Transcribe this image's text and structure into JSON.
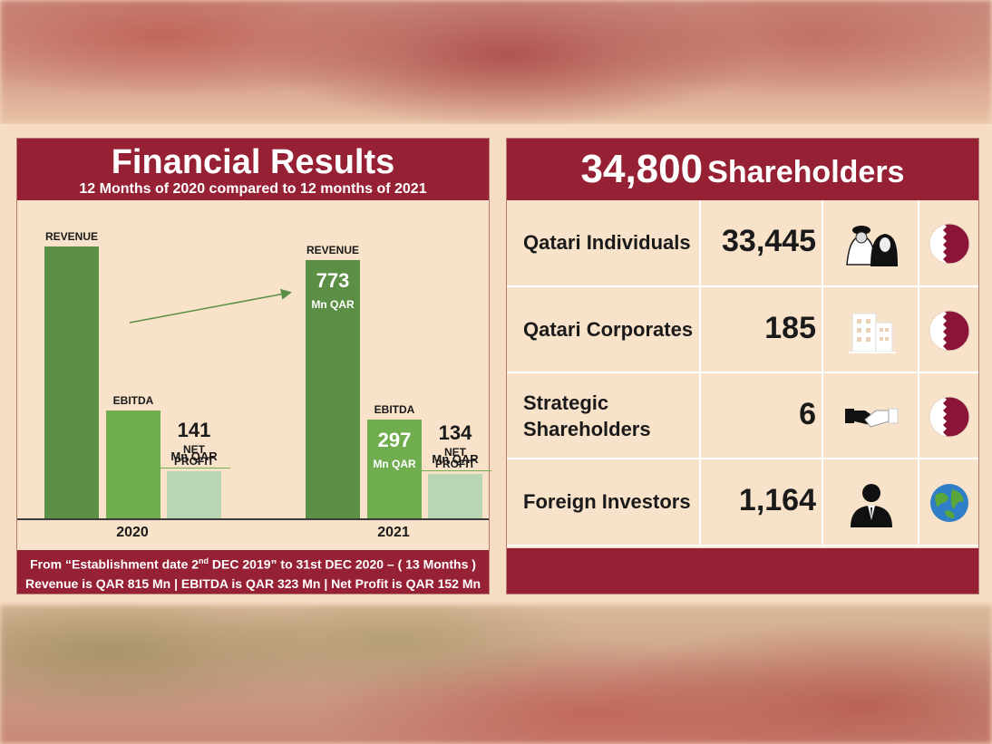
{
  "financial": {
    "title": "Financial Results",
    "subtitle": "12 Months of 2020 compared to 12 months of 2021",
    "footer_line1_pre": "From “Establishment date 2",
    "footer_line1_sup": "nd",
    "footer_line1_post": " DEC 2019” to 31st DEC 2020 – ( 13 Months )",
    "footer_line2": "Revenue is QAR 815 Mn | EBITDA is QAR 323 Mn | Net Profit is QAR 152 Mn"
  },
  "chart_data": {
    "type": "bar",
    "title": "Financial Results",
    "subtitle": "12 Months of 2020 compared to 12 months of 2021",
    "categories": [
      "2020",
      "2021"
    ],
    "unit": "Mn QAR",
    "series": [
      {
        "name": "REVENUE",
        "values": [
          815,
          773
        ],
        "color": "#5a8f45",
        "value_labels": [
          "",
          "773"
        ]
      },
      {
        "name": "EBITDA",
        "values": [
          323,
          297
        ],
        "color": "#6fad4f",
        "value_labels": [
          "",
          "297"
        ]
      },
      {
        "name": "NET PROFIT",
        "values": [
          141,
          134
        ],
        "color": "#b9d5b2",
        "value_labels": [
          "141",
          "134"
        ]
      }
    ],
    "ylim": [
      0,
      815
    ],
    "series_labels": {
      "revenue": "REVENUE",
      "ebitda": "EBITDA",
      "np_line1": "NET",
      "np_line2": "PROFIT"
    },
    "unit_label": "Mn QAR",
    "grid": false
  },
  "shareholders": {
    "total_number": "34,800",
    "total_word": "Shareholders",
    "rows": [
      {
        "label_line1": "Qatari Individuals",
        "label_line2": "",
        "value": "33,445",
        "icon": "people-icon",
        "flag": "qatar-flag-icon"
      },
      {
        "label_line1": "Qatari Corporates",
        "label_line2": "",
        "value": "185",
        "icon": "building-icon",
        "flag": "qatar-flag-icon"
      },
      {
        "label_line1": "Strategic",
        "label_line2": "Shareholders",
        "value": "6",
        "icon": "handshake-icon",
        "flag": "qatar-flag-icon"
      },
      {
        "label_line1": "Foreign Investors",
        "label_line2": "",
        "value": "1,164",
        "icon": "businessman-icon",
        "flag": "globe-icon"
      }
    ]
  },
  "colors": {
    "maroon": "#962134",
    "panel_bg": "#f8e2c9",
    "revenue_green": "#5a8f45",
    "ebitda_green": "#6fad4f",
    "net_profit_green": "#b9d5b2"
  }
}
